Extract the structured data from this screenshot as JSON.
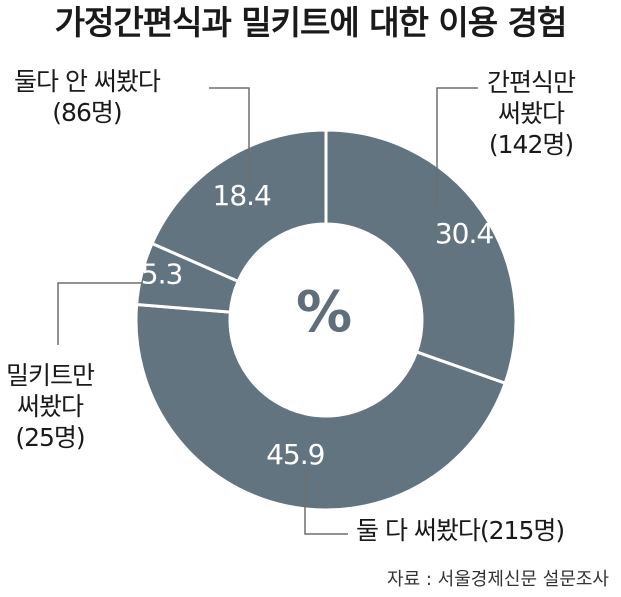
{
  "colors": {
    "slice": "#617480",
    "separator": "#ffffff",
    "leader": "#6e6e6e",
    "text": "#1a1a1a"
  },
  "title": "가정간편식과 밀키트에 대한 이용 경험",
  "unit": "%",
  "source": "자료 : 서울경제신문 설문조사",
  "chart_data": {
    "type": "pie",
    "title": "가정간편식과 밀키트에 대한 이용 경험",
    "unit": "%",
    "slices": [
      {
        "label": "간편식만 써봤다",
        "count": "142명",
        "value": 30.4
      },
      {
        "label": "둘 다 써봤다",
        "count": "215명",
        "value": 45.9
      },
      {
        "label": "밀키트만 써봤다",
        "count": "25명",
        "value": 5.3
      },
      {
        "label": "둘다 안 써봤다",
        "count": "86명",
        "value": 18.4
      }
    ]
  },
  "labels": {
    "hmr_only": [
      "간편식만",
      "써봤다",
      "(142명)"
    ],
    "both": [
      "둘 다 써봤다(215명)"
    ],
    "mealkit_only": [
      "밀키트만",
      "써봤다",
      "(25명)"
    ],
    "neither": [
      "둘다 안 써봤다",
      "(86명)"
    ]
  }
}
